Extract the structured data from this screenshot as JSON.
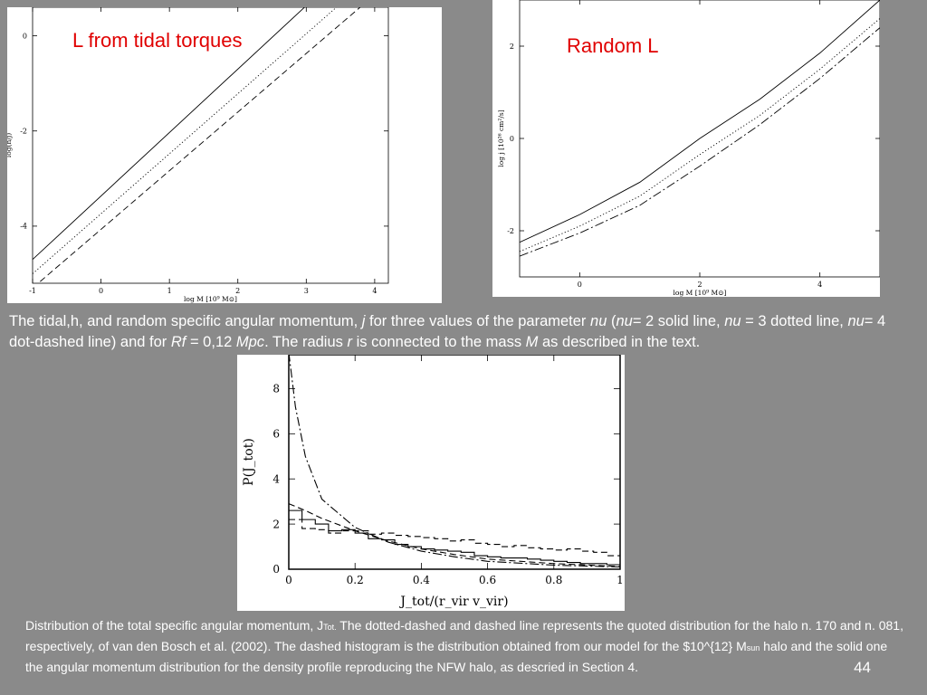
{
  "slide": {
    "number": "44"
  },
  "captions": {
    "top": {
      "p1": "The tidal,h,  and random specific angular momentum, ",
      "j": "j",
      "p2": " for three values of the parameter ",
      "nu_a": "nu",
      "p3": " (",
      "nu_b": "nu",
      "p4": "= 2 solid line, ",
      "nu_c": "nu",
      "p5": " = 3 dotted line, ",
      "nu_d": "nu",
      "p6": "= 4 dot-dashed line) and for ",
      "rf": "Rf",
      "p7": " = 0,12 ",
      "mpc": "Mpc",
      "p8": ". The radius ",
      "r": "r",
      "p9": " is connected to the mass ",
      "m": "M",
      "p10": " as described in the text."
    },
    "bottom": {
      "p1": "Distribution of the total specific angular momentum, J",
      "sub_tot": "Tot.",
      "p2": " The dotted-dashed and  dashed line represents the quoted distribution for the halo n. 170 and n. 081, respectively,  of van den Bosch et al. (2002). The dashed histogram is the distribution obtained from  our model for the $10^{12} M",
      "sub_sun": "sun",
      "p3": " halo and the solid one the angular momentum  distribution for the density profile reproducing the NFW halo, as descried in Section 4."
    }
  },
  "chart_data": [
    {
      "type": "line",
      "title": "L from tidal torques",
      "xlabel": "log M [10⁹ M⊙]",
      "ylabel": "log(h/j)",
      "xlim": [
        -1,
        4.2
      ],
      "ylim": [
        -5.2,
        0.6
      ],
      "xticks": [
        -1,
        0,
        1,
        2,
        3,
        4
      ],
      "yticks": [
        0,
        -2,
        -4
      ],
      "series": [
        {
          "style": "solid",
          "x": [
            -1,
            3.05
          ],
          "y": [
            -4.7,
            0.7
          ]
        },
        {
          "style": "dotted",
          "x": [
            -1,
            3.6
          ],
          "y": [
            -5.0,
            0.8
          ]
        },
        {
          "style": "dashed",
          "x": [
            -1,
            3.95
          ],
          "y": [
            -5.3,
            0.8
          ]
        }
      ]
    },
    {
      "type": "line",
      "title": "Random L",
      "xlabel": "log M [10⁹ M⊙]",
      "ylabel": "log j [10²⁶ cm²/s]",
      "xlim": [
        -1,
        5
      ],
      "ylim": [
        -3,
        3
      ],
      "xticks": [
        0,
        2,
        4
      ],
      "yticks": [
        2,
        0,
        -2
      ],
      "series": [
        {
          "style": "solid",
          "x": [
            -1,
            0,
            1,
            2,
            3,
            4,
            5
          ],
          "y": [
            -2.25,
            -1.65,
            -0.95,
            0,
            0.85,
            1.85,
            3.0
          ]
        },
        {
          "style": "dotted",
          "x": [
            -1,
            0,
            1,
            2,
            3,
            4,
            5
          ],
          "y": [
            -2.45,
            -1.9,
            -1.25,
            -0.35,
            0.5,
            1.5,
            2.6
          ]
        },
        {
          "style": "dashdot",
          "x": [
            -1,
            0,
            1,
            2,
            3,
            4,
            5
          ],
          "y": [
            -2.55,
            -2.05,
            -1.45,
            -0.6,
            0.3,
            1.3,
            2.4
          ]
        }
      ]
    },
    {
      "type": "line",
      "title": "",
      "xlabel": "J_tot/(r_vir v_vir)",
      "ylabel": "P(J_tot)",
      "xlim": [
        0,
        1
      ],
      "ylim": [
        0,
        9.5
      ],
      "xticks": [
        0,
        0.2,
        0.4,
        0.6,
        0.8,
        1
      ],
      "yticks": [
        0,
        2,
        4,
        6,
        8
      ],
      "series": [
        {
          "style": "dashdot",
          "x": [
            0,
            0.02,
            0.05,
            0.1,
            0.2,
            0.3,
            0.4,
            0.5,
            0.6,
            0.8,
            1.0
          ],
          "y": [
            9.6,
            7.2,
            5.0,
            3.1,
            1.85,
            1.2,
            0.8,
            0.55,
            0.35,
            0.18,
            0.1
          ]
        },
        {
          "style": "dashed",
          "x": [
            0,
            0.05,
            0.1,
            0.2,
            0.3,
            0.4,
            0.5,
            0.6,
            0.8,
            1.0
          ],
          "y": [
            2.9,
            2.6,
            2.25,
            1.7,
            1.25,
            0.9,
            0.65,
            0.45,
            0.25,
            0.12
          ]
        },
        {
          "style": "dashed-hist",
          "bins": [
            0.0,
            0.04,
            0.08,
            0.12,
            0.16,
            0.2,
            0.24,
            0.28,
            0.32,
            0.36,
            0.4,
            0.44,
            0.48,
            0.52,
            0.56,
            0.6,
            0.64,
            0.68,
            0.72,
            0.76,
            0.8,
            0.84,
            0.88,
            0.92,
            0.96,
            1.0
          ],
          "values": [
            2.2,
            1.8,
            1.75,
            1.6,
            1.7,
            1.7,
            1.55,
            1.6,
            1.5,
            1.45,
            1.4,
            1.35,
            1.25,
            1.3,
            1.15,
            1.1,
            1.0,
            1.05,
            0.95,
            0.9,
            0.85,
            0.9,
            0.8,
            0.75,
            0.6
          ]
        },
        {
          "style": "solid-hist",
          "bins": [
            0.0,
            0.04,
            0.08,
            0.12,
            0.16,
            0.2,
            0.24,
            0.28,
            0.32,
            0.36,
            0.4,
            0.44,
            0.48,
            0.52,
            0.56,
            0.6,
            0.64,
            0.68,
            0.72,
            0.76,
            0.8,
            0.84,
            0.88,
            0.92,
            0.96,
            1.0
          ],
          "values": [
            2.6,
            2.2,
            2.0,
            1.7,
            1.75,
            1.6,
            1.35,
            1.3,
            1.1,
            1.0,
            0.9,
            0.85,
            0.8,
            0.75,
            0.6,
            0.55,
            0.5,
            0.5,
            0.45,
            0.4,
            0.35,
            0.3,
            0.25,
            0.25,
            0.2
          ]
        }
      ]
    }
  ]
}
